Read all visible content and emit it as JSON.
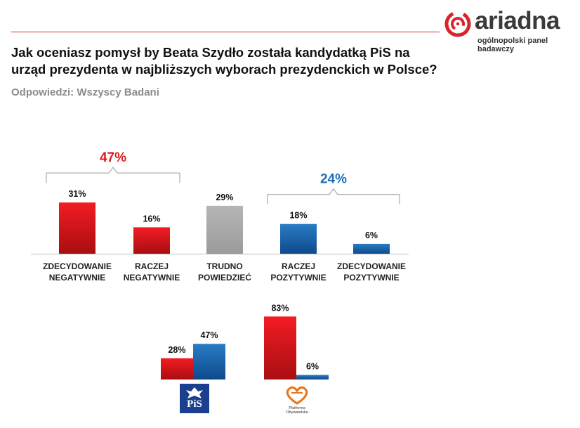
{
  "header": {
    "logo_word": "ariadna",
    "logo_sub": "ogólnopolski panel badawczy"
  },
  "question": "Jak oceniasz pomysł by Beata Szydło została kandydatką PiS na urząd prezydenta w najbliższych wyborach prezydenckich w Polsce?",
  "respondents": "Odpowiedzi: Wszyscy Badani",
  "colors": {
    "red": "#e0191c",
    "gray": "#a6a6a6",
    "blue": "#1f6fb7"
  },
  "chart_data": [
    {
      "type": "bar",
      "categories": [
        [
          "ZDECYDOWANIE",
          "NEGATYWNIE"
        ],
        [
          "RACZEJ",
          "NEGATYWNIE"
        ],
        [
          "TRUDNO",
          "POWIEDZIEĆ"
        ],
        [
          "RACZEJ",
          "POZYTYWNIE"
        ],
        [
          "ZDECYDOWANIE",
          "POZYTYWNIE"
        ]
      ],
      "values": [
        31,
        16,
        29,
        18,
        6
      ],
      "value_labels": [
        "31%",
        "16%",
        "29%",
        "18%",
        "6%"
      ],
      "bar_colors": [
        "red",
        "red",
        "gray",
        "blue",
        "blue"
      ],
      "groups": [
        {
          "label": "47%",
          "from": 0,
          "to": 1,
          "color": "red"
        },
        {
          "label": "24%",
          "from": 3,
          "to": 4,
          "color": "blue"
        }
      ]
    },
    {
      "type": "bar",
      "categories": [
        "PiS",
        "Platforma Obywatelska"
      ],
      "series": [
        {
          "values": [
            28,
            83
          ],
          "value_labels": [
            "28%",
            "83%"
          ],
          "color": "red"
        },
        {
          "values": [
            47,
            6
          ],
          "value_labels": [
            "47%",
            "6%"
          ],
          "color": "blue"
        }
      ],
      "logos": {
        "pis": "PiS",
        "po": "Platforma Obywatelska"
      }
    }
  ]
}
